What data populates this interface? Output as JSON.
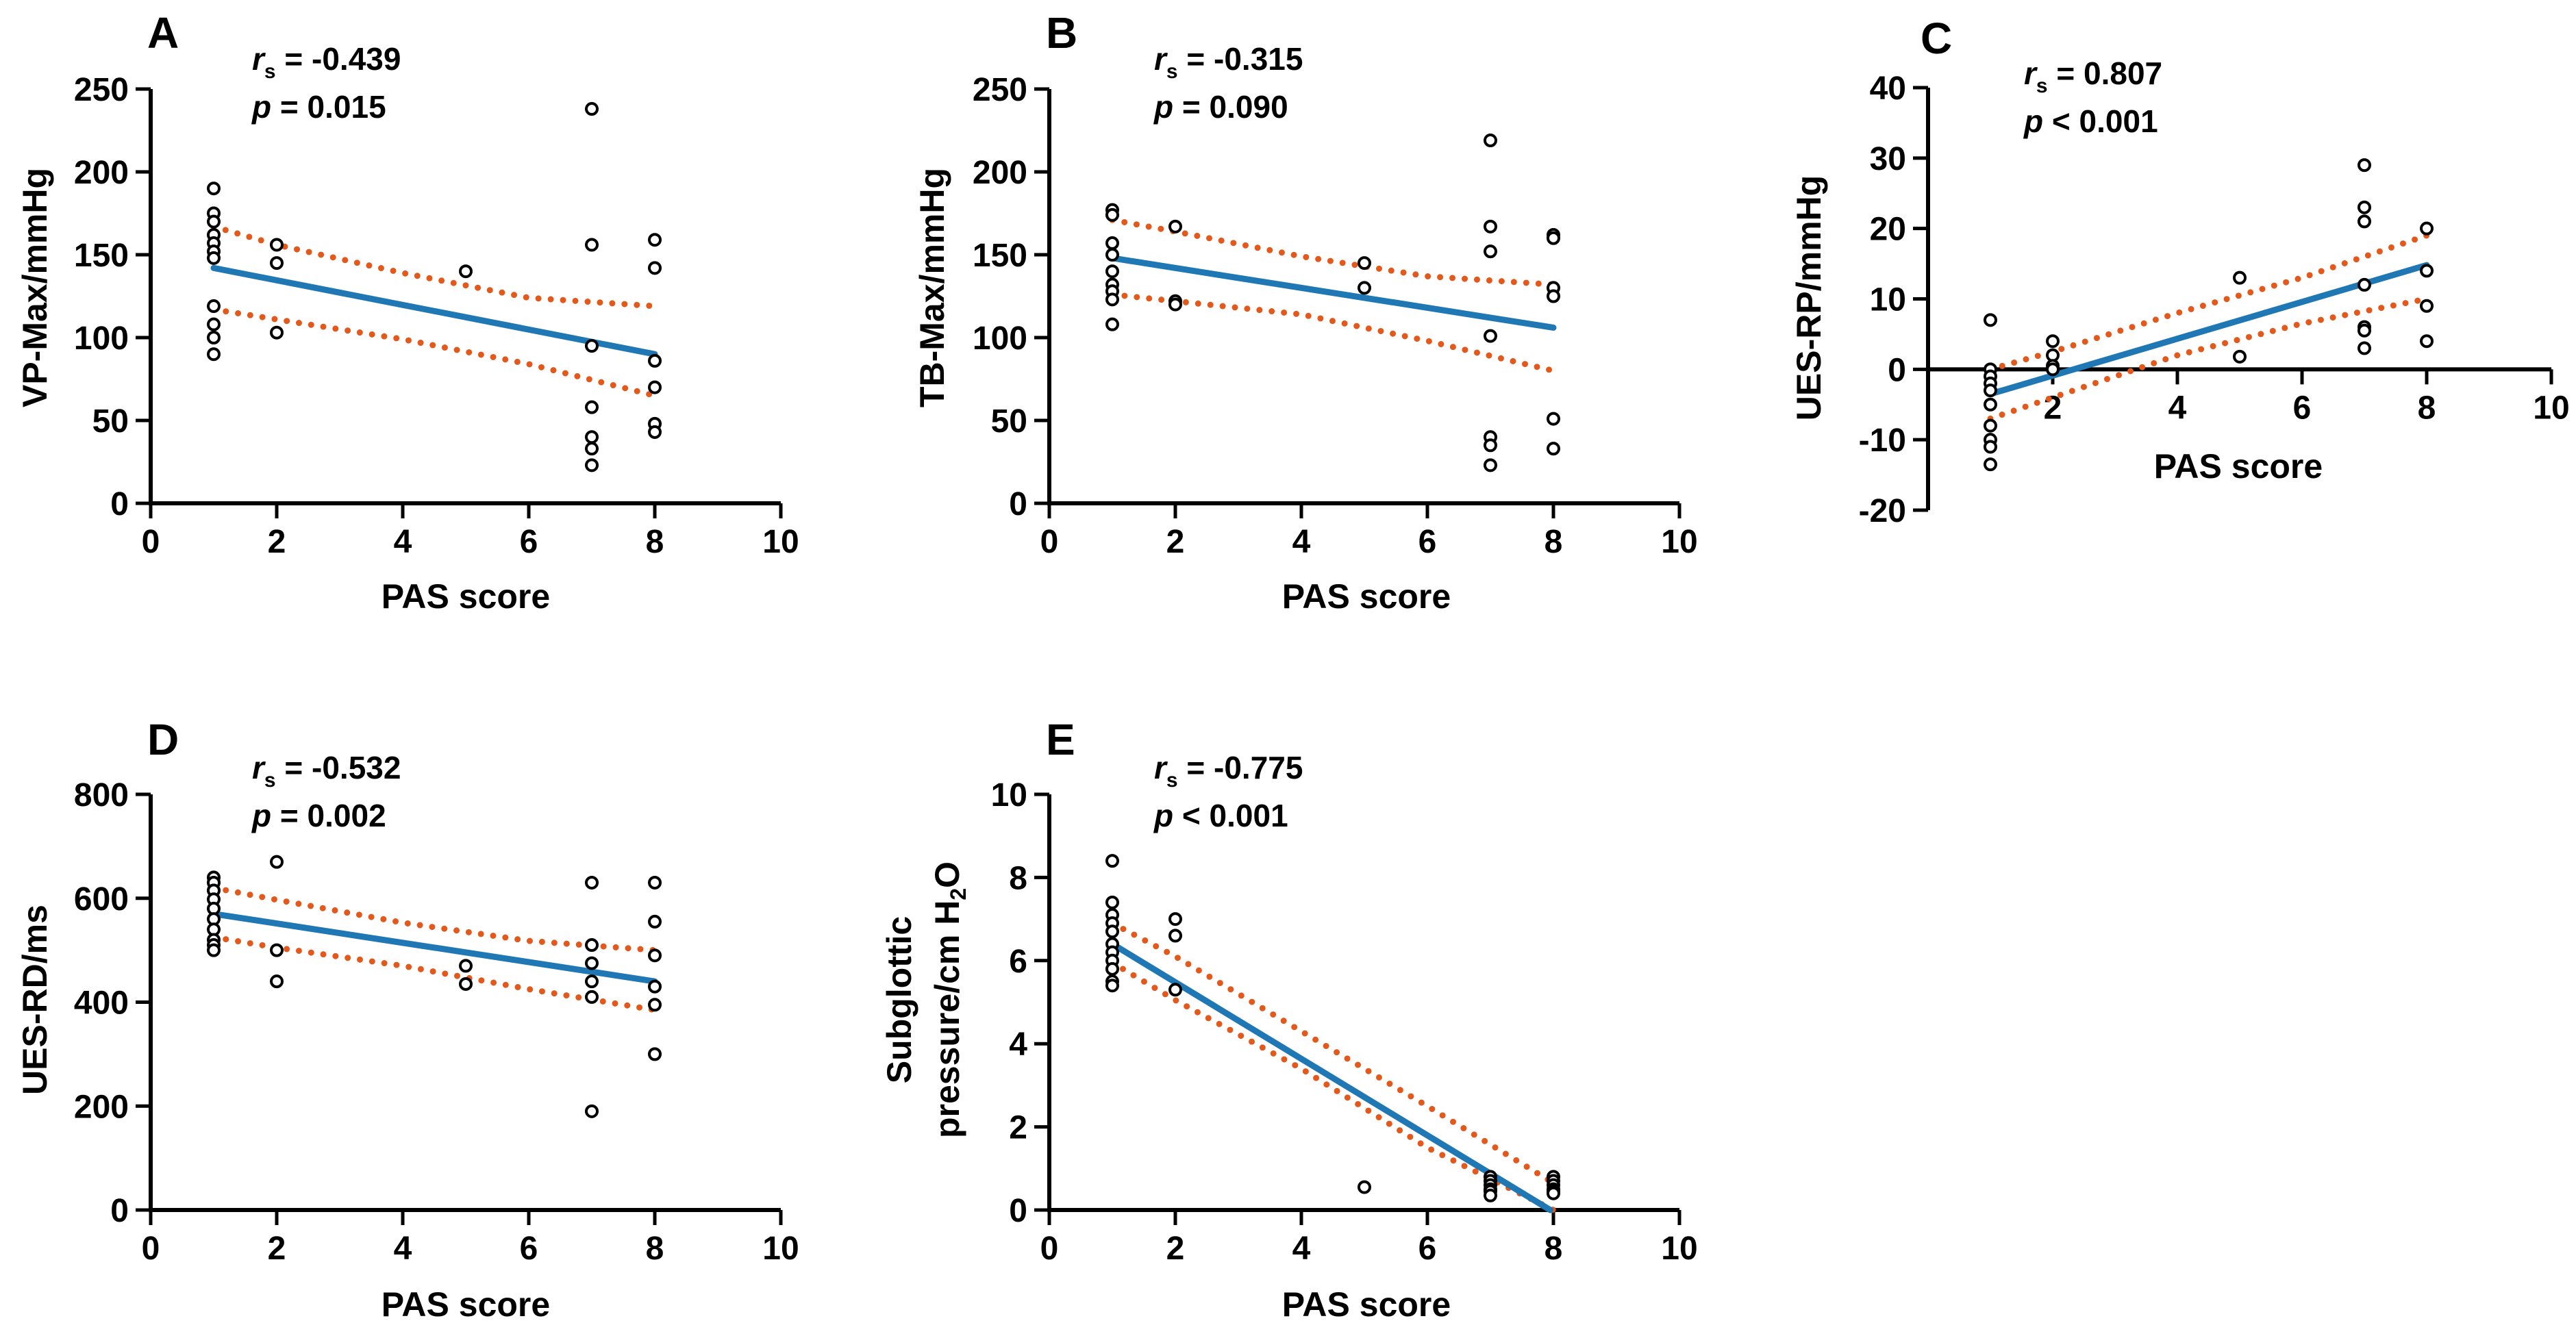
{
  "colors": {
    "axis": "#000000",
    "fit_line": "#1f77b4",
    "ci_band": "#e3581b",
    "points": "#000000"
  },
  "chart_data": [
    {
      "type": "scatter",
      "panel_label": "A",
      "xlabel": "PAS score",
      "ylabel": "VP-Max/mmHg",
      "stat_r": "-0.439",
      "p_op": "=",
      "p_value": "0.015",
      "xlim": [
        0,
        10
      ],
      "ylim": [
        0,
        250
      ],
      "xticks": [
        0,
        2,
        4,
        6,
        8,
        10
      ],
      "yticks": [
        0,
        50,
        100,
        150,
        200,
        250
      ],
      "points": [
        [
          1,
          190
        ],
        [
          1,
          175
        ],
        [
          1,
          170
        ],
        [
          1,
          162
        ],
        [
          1,
          157
        ],
        [
          1,
          152
        ],
        [
          1,
          148
        ],
        [
          1,
          119
        ],
        [
          1,
          108
        ],
        [
          1,
          100
        ],
        [
          1,
          90
        ],
        [
          2,
          156
        ],
        [
          2,
          145
        ],
        [
          2,
          103
        ],
        [
          5,
          140
        ],
        [
          7,
          238
        ],
        [
          7,
          156
        ],
        [
          7,
          95
        ],
        [
          7,
          58
        ],
        [
          7,
          40
        ],
        [
          7,
          33
        ],
        [
          7,
          23
        ],
        [
          8,
          159
        ],
        [
          8,
          142
        ],
        [
          8,
          86
        ],
        [
          8,
          70
        ],
        [
          8,
          48
        ],
        [
          8,
          43
        ]
      ],
      "fit": {
        "x": [
          1,
          8
        ],
        "y": [
          142,
          90
        ]
      },
      "ci_upper": {
        "x": [
          1,
          2,
          4,
          6,
          8
        ],
        "y": [
          167,
          156,
          139,
          124,
          119
        ]
      },
      "ci_lower": {
        "x": [
          1,
          2,
          4,
          6,
          8
        ],
        "y": [
          117,
          111,
          99,
          84,
          65
        ]
      }
    },
    {
      "type": "scatter",
      "panel_label": "B",
      "xlabel": "PAS score",
      "ylabel": "TB-Max/mmHg",
      "stat_r": "-0.315",
      "p_op": "=",
      "p_value": "0.090",
      "xlim": [
        0,
        10
      ],
      "ylim": [
        0,
        250
      ],
      "xticks": [
        0,
        2,
        4,
        6,
        8,
        10
      ],
      "yticks": [
        0,
        50,
        100,
        150,
        200,
        250
      ],
      "points": [
        [
          1,
          177
        ],
        [
          1,
          174
        ],
        [
          1,
          157
        ],
        [
          1,
          150
        ],
        [
          1,
          140
        ],
        [
          1,
          132
        ],
        [
          1,
          128
        ],
        [
          1,
          123
        ],
        [
          1,
          108
        ],
        [
          2,
          167
        ],
        [
          2,
          122
        ],
        [
          2,
          120
        ],
        [
          5,
          145
        ],
        [
          5,
          130
        ],
        [
          7,
          219
        ],
        [
          7,
          167
        ],
        [
          7,
          152
        ],
        [
          7,
          101
        ],
        [
          7,
          40
        ],
        [
          7,
          35
        ],
        [
          7,
          23
        ],
        [
          8,
          162
        ],
        [
          8,
          160
        ],
        [
          8,
          130
        ],
        [
          8,
          125
        ],
        [
          8,
          51
        ],
        [
          8,
          33
        ]
      ],
      "fit": {
        "x": [
          1,
          8
        ],
        "y": [
          148,
          106
        ]
      },
      "ci_upper": {
        "x": [
          1,
          2,
          4,
          6,
          8
        ],
        "y": [
          171,
          164,
          149,
          137,
          132
        ]
      },
      "ci_lower": {
        "x": [
          1,
          2,
          4,
          6,
          8
        ],
        "y": [
          126,
          122,
          114,
          98,
          80
        ]
      }
    },
    {
      "type": "scatter",
      "panel_label": "C",
      "xlabel": "PAS score",
      "ylabel": "UES-RP/mmHg",
      "stat_r": "0.807",
      "p_op": "<",
      "p_value": "0.001",
      "xlim": [
        0,
        10
      ],
      "ylim": [
        -20,
        40
      ],
      "xticks": [
        2,
        4,
        6,
        8,
        10
      ],
      "yticks": [
        -20,
        -10,
        0,
        10,
        20,
        30,
        40
      ],
      "points": [
        [
          1,
          7
        ],
        [
          1,
          0
        ],
        [
          1,
          -1
        ],
        [
          1,
          -2
        ],
        [
          1,
          -3
        ],
        [
          1,
          -5
        ],
        [
          1,
          -8
        ],
        [
          1,
          -10
        ],
        [
          1,
          -11
        ],
        [
          1,
          -13.5
        ],
        [
          2,
          4
        ],
        [
          2,
          2
        ],
        [
          2,
          0.5
        ],
        [
          2,
          0
        ],
        [
          5,
          13
        ],
        [
          5,
          1.8
        ],
        [
          7,
          29
        ],
        [
          7,
          23
        ],
        [
          7,
          21
        ],
        [
          7,
          12
        ],
        [
          7,
          6
        ],
        [
          7,
          5.5
        ],
        [
          7,
          3
        ],
        [
          8,
          20
        ],
        [
          8,
          14
        ],
        [
          8,
          9
        ],
        [
          8,
          4
        ]
      ],
      "fit": {
        "x": [
          1,
          8
        ],
        "y": [
          -3.5,
          14.8
        ]
      },
      "ci_upper": {
        "x": [
          1,
          2,
          4,
          6,
          8
        ],
        "y": [
          0,
          2.5,
          8,
          13,
          19
        ]
      },
      "ci_lower": {
        "x": [
          1,
          2,
          4,
          6,
          8
        ],
        "y": [
          -7,
          -4,
          2,
          6.5,
          10
        ]
      }
    },
    {
      "type": "scatter",
      "panel_label": "D",
      "xlabel": "PAS score",
      "ylabel": "UES-RD/ms",
      "stat_r": "-0.532",
      "p_op": "=",
      "p_value": "0.002",
      "xlim": [
        0,
        10
      ],
      "ylim": [
        0,
        800
      ],
      "xticks": [
        0,
        2,
        4,
        6,
        8,
        10
      ],
      "yticks": [
        0,
        200,
        400,
        600,
        800
      ],
      "points": [
        [
          1,
          640
        ],
        [
          1,
          630
        ],
        [
          1,
          615
        ],
        [
          1,
          598
        ],
        [
          1,
          580
        ],
        [
          1,
          560
        ],
        [
          1,
          540
        ],
        [
          1,
          520
        ],
        [
          1,
          510
        ],
        [
          1,
          500
        ],
        [
          2,
          670
        ],
        [
          2,
          500
        ],
        [
          2,
          440
        ],
        [
          5,
          470
        ],
        [
          5,
          435
        ],
        [
          7,
          630
        ],
        [
          7,
          510
        ],
        [
          7,
          475
        ],
        [
          7,
          440
        ],
        [
          7,
          410
        ],
        [
          7,
          190
        ],
        [
          8,
          630
        ],
        [
          8,
          555
        ],
        [
          8,
          490
        ],
        [
          8,
          430
        ],
        [
          8,
          395
        ],
        [
          8,
          300
        ]
      ],
      "fit": {
        "x": [
          1,
          8
        ],
        "y": [
          570,
          440
        ]
      },
      "ci_upper": {
        "x": [
          1,
          2,
          4,
          6,
          8
        ],
        "y": [
          620,
          597,
          553,
          518,
          500
        ]
      },
      "ci_lower": {
        "x": [
          1,
          2,
          4,
          6,
          8
        ],
        "y": [
          525,
          505,
          470,
          425,
          385
        ]
      }
    },
    {
      "type": "scatter",
      "panel_label": "E",
      "xlabel": "PAS score",
      "ylabel_line1": "Subglottic",
      "ylabel_line2": "pressure/cm H",
      "ylabel_sub": "2",
      "ylabel_line2_end": "O",
      "stat_r": "-0.775",
      "p_op": "<",
      "p_value": "0.001",
      "xlim": [
        0,
        10
      ],
      "ylim": [
        0,
        10
      ],
      "xticks": [
        0,
        2,
        4,
        6,
        8,
        10
      ],
      "yticks": [
        0,
        2,
        4,
        6,
        8,
        10
      ],
      "points": [
        [
          1,
          8.4
        ],
        [
          1,
          7.4
        ],
        [
          1,
          7.1
        ],
        [
          1,
          6.9
        ],
        [
          1,
          6.7
        ],
        [
          1,
          6.4
        ],
        [
          1,
          6.2
        ],
        [
          1,
          6.0
        ],
        [
          1,
          5.8
        ],
        [
          1,
          5.5
        ],
        [
          1,
          5.4
        ],
        [
          2,
          7.0
        ],
        [
          2,
          6.6
        ],
        [
          2,
          5.3
        ],
        [
          5,
          0.55
        ],
        [
          7,
          0.8
        ],
        [
          7,
          0.7
        ],
        [
          7,
          0.6
        ],
        [
          7,
          0.5
        ],
        [
          7,
          0.45
        ],
        [
          7,
          0.35
        ],
        [
          8,
          0.8
        ],
        [
          8,
          0.7
        ],
        [
          8,
          0.6
        ],
        [
          8,
          0.5
        ],
        [
          8,
          0.45
        ],
        [
          8,
          0.4
        ]
      ],
      "fit": {
        "x": [
          1,
          7.95
        ],
        "y": [
          6.4,
          0
        ]
      },
      "ci_upper": {
        "x": [
          1,
          2,
          4,
          6,
          8
        ],
        "y": [
          6.9,
          6.1,
          4.3,
          2.5,
          0.65
        ]
      },
      "ci_lower": {
        "x": [
          1,
          2,
          4,
          6,
          8
        ],
        "y": [
          5.95,
          5.05,
          3.4,
          1.5,
          0
        ]
      }
    }
  ]
}
